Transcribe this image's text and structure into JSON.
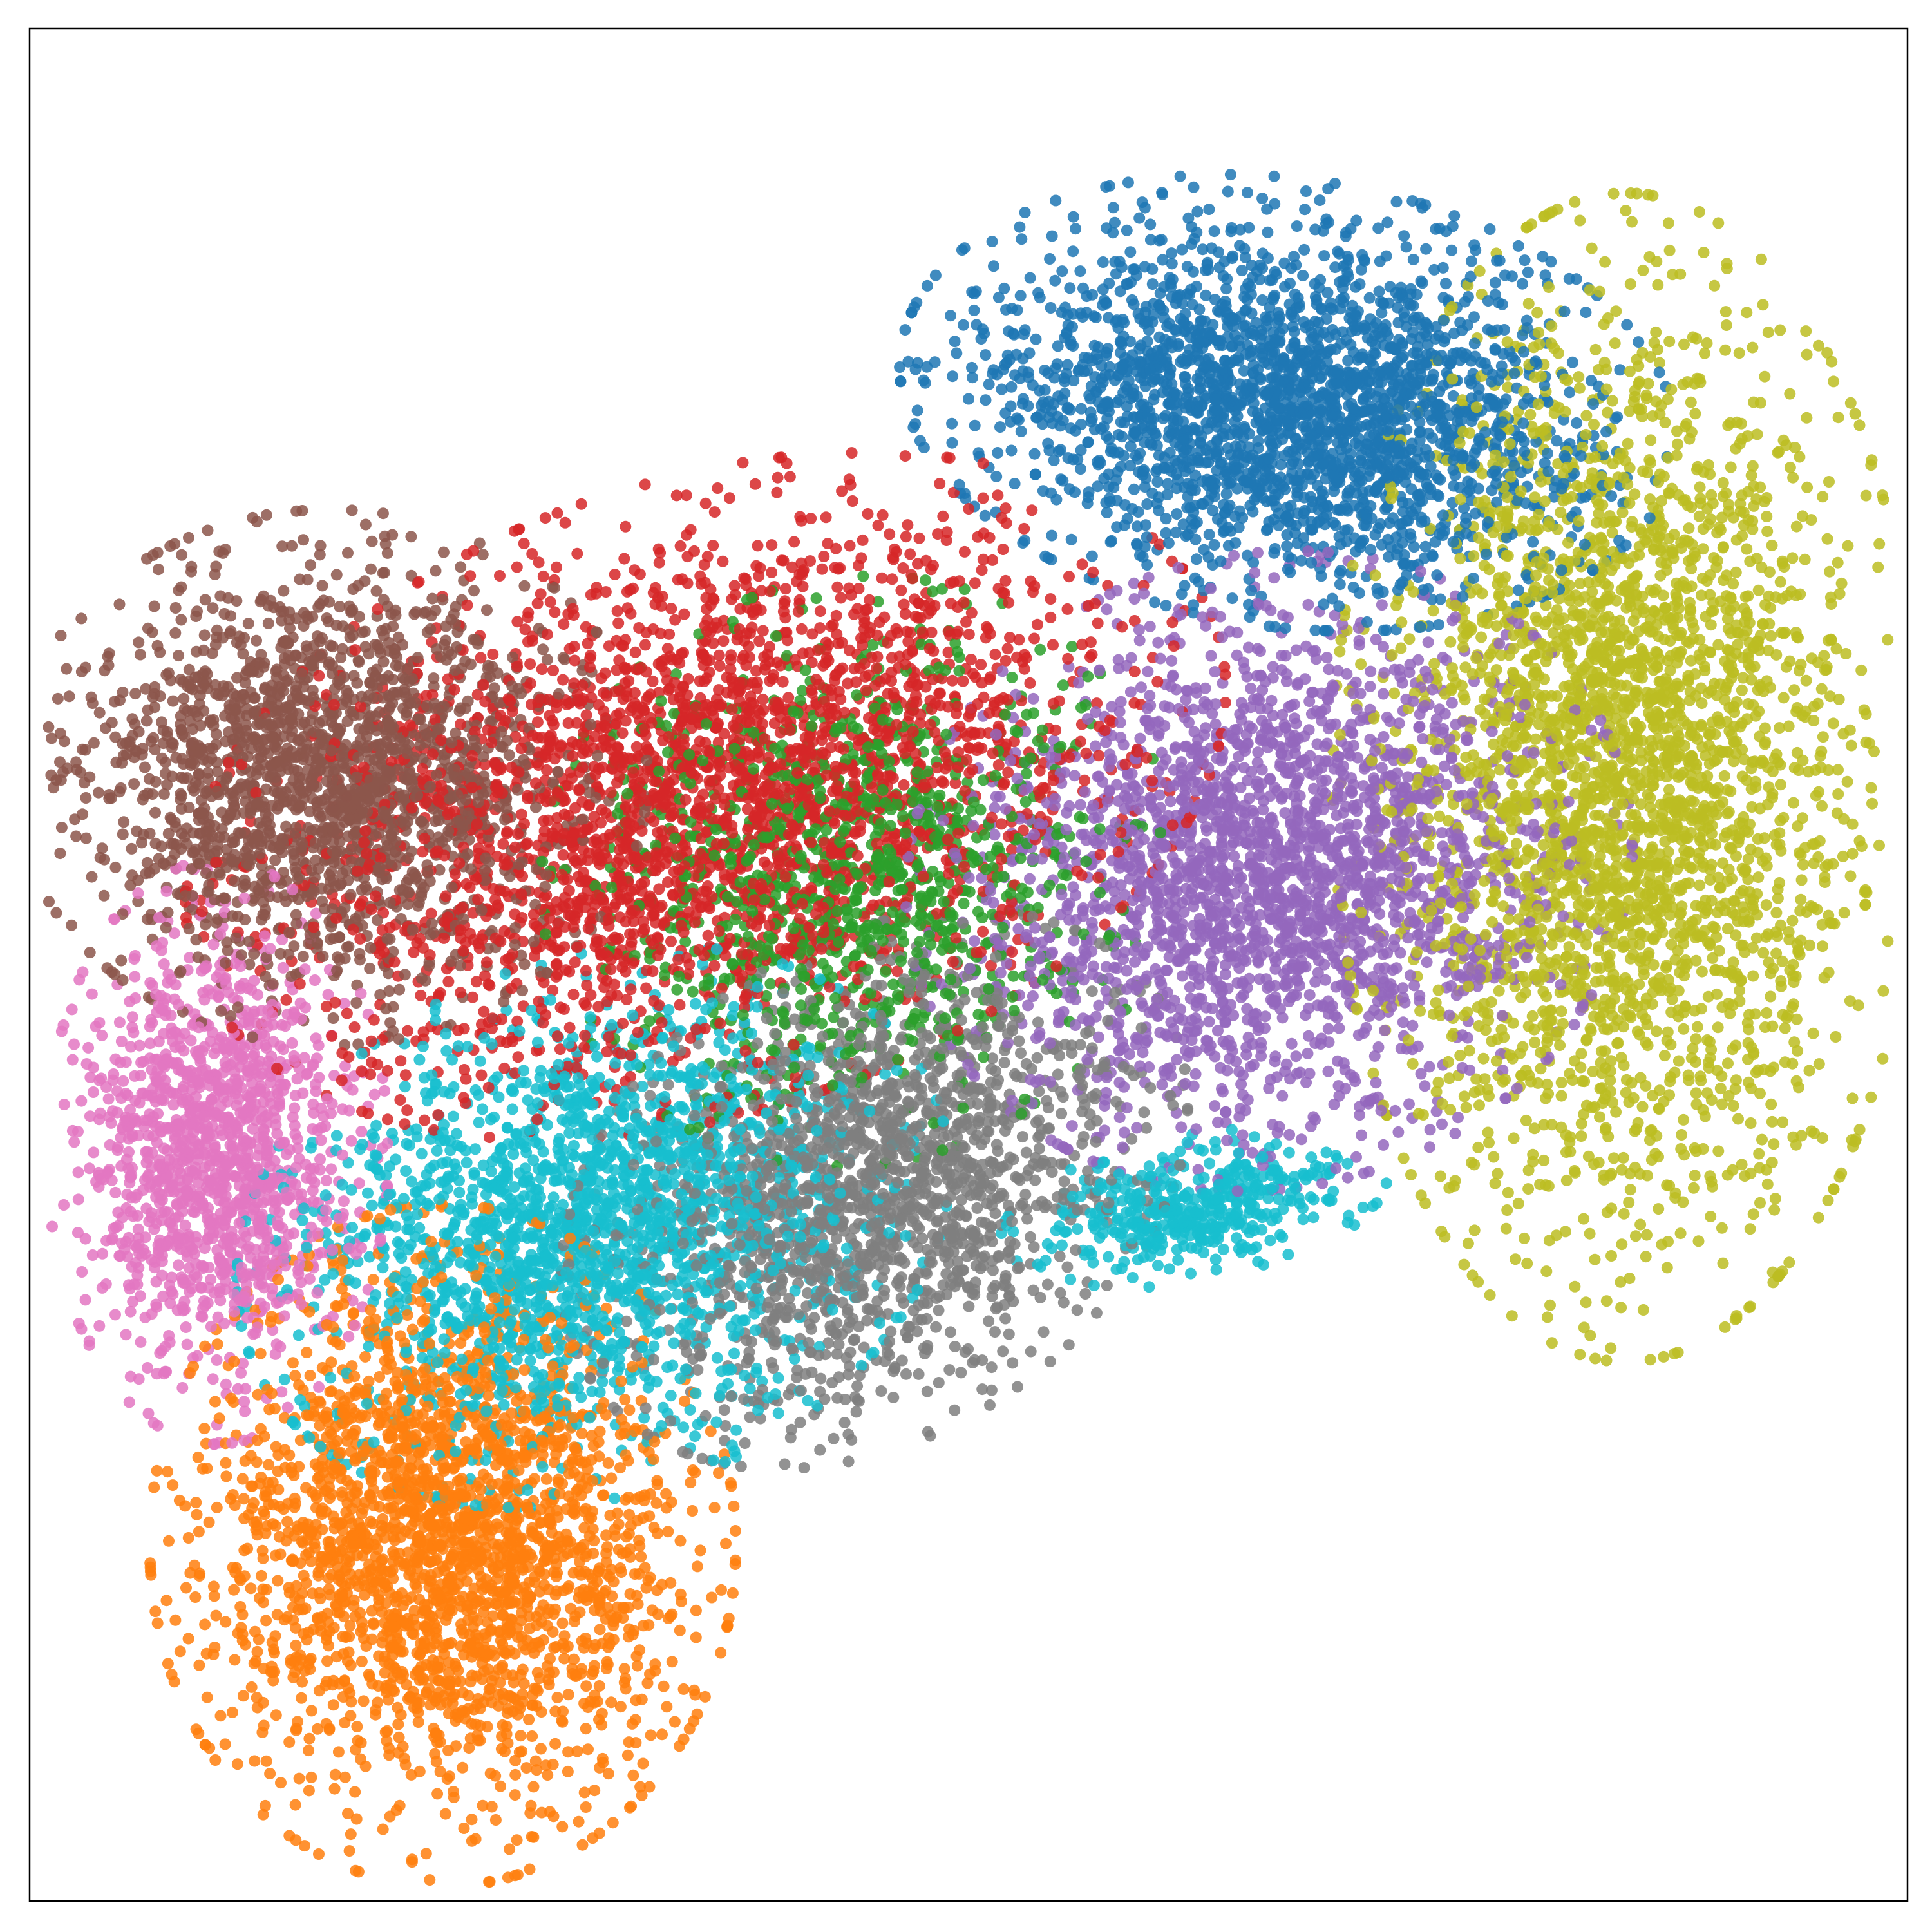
{
  "chart_data": {
    "type": "scatter",
    "title": "",
    "xlabel": "",
    "ylabel": "",
    "xticks": [],
    "yticks": [],
    "xlim": [
      0,
      100
    ],
    "ylim": [
      0,
      100
    ],
    "grid": false,
    "legend": "none",
    "clusters": [
      {
        "color": "#1f77b4",
        "center": [
          67,
          80
        ],
        "spread": [
          8.0,
          4.6
        ],
        "share": 0.11,
        "angle": -8
      },
      {
        "color": "#ff7f0e",
        "center": [
          22,
          19
        ],
        "spread": [
          6.0,
          7.0
        ],
        "share": 0.11,
        "angle": 0
      },
      {
        "color": "#2ca02c",
        "center": [
          44,
          55
        ],
        "spread": [
          6.5,
          6.0
        ],
        "share": 0.05,
        "angle": 20
      },
      {
        "color": "#d62728",
        "center": [
          36,
          59
        ],
        "spread": [
          11.0,
          6.5
        ],
        "share": 0.13,
        "angle": 18
      },
      {
        "color": "#9467bd",
        "center": [
          66,
          55
        ],
        "spread": [
          7.5,
          6.5
        ],
        "share": 0.11,
        "angle": 15
      },
      {
        "color": "#8c564b",
        "center": [
          16,
          60
        ],
        "spread": [
          6.5,
          5.5
        ],
        "share": 0.09,
        "angle": 0
      },
      {
        "color": "#e377c2",
        "center": [
          10,
          40
        ],
        "spread": [
          3.5,
          6.0
        ],
        "share": 0.06,
        "angle": 0
      },
      {
        "color": "#7f7f7f",
        "center": [
          45,
          38
        ],
        "spread": [
          7.0,
          5.0
        ],
        "share": 0.08,
        "angle": 35
      },
      {
        "color": "#bcbd22",
        "center": [
          85,
          60
        ],
        "spread": [
          6.0,
          12.0
        ],
        "share": 0.14,
        "angle": 0
      },
      {
        "color": "#17becf",
        "center": [
          30,
          36
        ],
        "spread": [
          7.5,
          5.5
        ],
        "share": 0.09,
        "angle": 20
      },
      {
        "color": "#17becf",
        "center": [
          62,
          37
        ],
        "spread": [
          4.0,
          1.5
        ],
        "share": 0.02,
        "angle": 10
      }
    ]
  }
}
